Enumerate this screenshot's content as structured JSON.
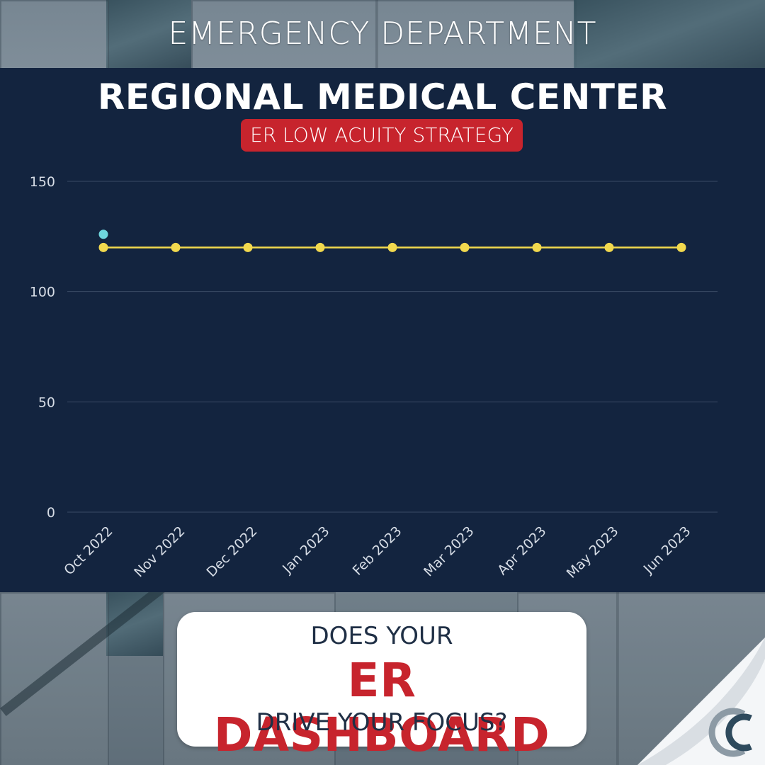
{
  "header": {
    "title": "EMERGENCY DEPARTMENT"
  },
  "panel": {
    "title": "REGIONAL MEDICAL CENTER",
    "badge": "ER LOW ACUITY STRATEGY"
  },
  "callout": {
    "line1": "DOES YOUR",
    "line2": "ER DASHBOARD",
    "line3": "DRIVE YOUR FOCUS?"
  },
  "colors": {
    "panel_bg": "#13243f",
    "accent_red": "#c7242d",
    "series_yellow": "#f2d94e",
    "point_cyan": "#6fd6de",
    "grid": "#3a4a64",
    "tick_text": "#d7dde6"
  },
  "logo": {
    "icon": "company-logo-icon"
  },
  "chart_data": {
    "type": "line",
    "title": "",
    "xlabel": "",
    "ylabel": "",
    "ylim": [
      0,
      150
    ],
    "yticks": [
      0,
      50,
      100,
      150
    ],
    "grid": true,
    "categories": [
      "Oct 2022",
      "Nov 2022",
      "Dec 2022",
      "Jan 2023",
      "Feb 2023",
      "Mar 2023",
      "Apr 2023",
      "May 2023",
      "Jun 2023"
    ],
    "series": [
      {
        "values": [
          120,
          120,
          120,
          120,
          120,
          120,
          120,
          120,
          120
        ],
        "color": "#f2d94e",
        "style": "line-markers"
      },
      {
        "values": [
          126,
          null,
          null,
          null,
          null,
          null,
          null,
          null,
          null
        ],
        "color": "#6fd6de",
        "style": "markers"
      }
    ]
  }
}
